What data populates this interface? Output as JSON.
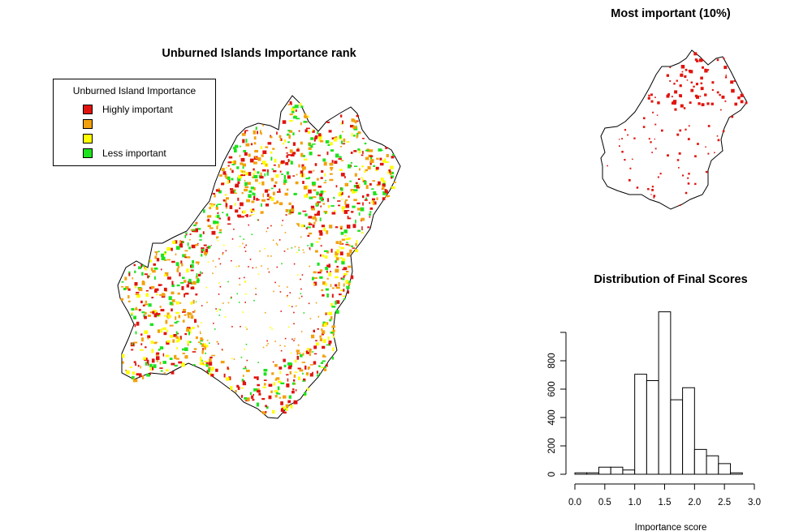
{
  "main_map": {
    "title": "Unburned Islands Importance rank",
    "legend": {
      "title": "Unburned Island Importance",
      "items": [
        {
          "label": "Highly important",
          "color": "#e0140e"
        },
        {
          "label": "",
          "color": "#f2a10c"
        },
        {
          "label": "",
          "color": "#ffff00"
        },
        {
          "label": "Less important",
          "color": "#1ee21e"
        }
      ]
    }
  },
  "top_map": {
    "title": "Most important (10%)",
    "highlight_color": "#e0140e"
  },
  "chart_data": {
    "type": "bar",
    "title": "Distribution of Final Scores",
    "xlabel": "Importance score",
    "ylabel": "",
    "xlim": [
      0,
      3.0
    ],
    "ylim": [
      0,
      1000
    ],
    "x_ticks": [
      "0.0",
      "0.5",
      "1.0",
      "1.5",
      "2.0",
      "2.5",
      "3.0"
    ],
    "y_ticks": [
      "0",
      "200",
      "400",
      "600",
      "800"
    ],
    "bins": [
      [
        0.0,
        0.2,
        10
      ],
      [
        0.2,
        0.4,
        10
      ],
      [
        0.4,
        0.6,
        50
      ],
      [
        0.6,
        0.8,
        50
      ],
      [
        0.8,
        1.0,
        30
      ],
      [
        1.0,
        1.2,
        705
      ],
      [
        1.2,
        1.4,
        660
      ],
      [
        1.4,
        1.6,
        1145
      ],
      [
        1.6,
        1.8,
        525
      ],
      [
        1.8,
        2.0,
        610
      ],
      [
        2.0,
        2.2,
        175
      ],
      [
        2.2,
        2.4,
        130
      ],
      [
        2.4,
        2.6,
        75
      ],
      [
        2.6,
        2.8,
        10
      ]
    ]
  }
}
